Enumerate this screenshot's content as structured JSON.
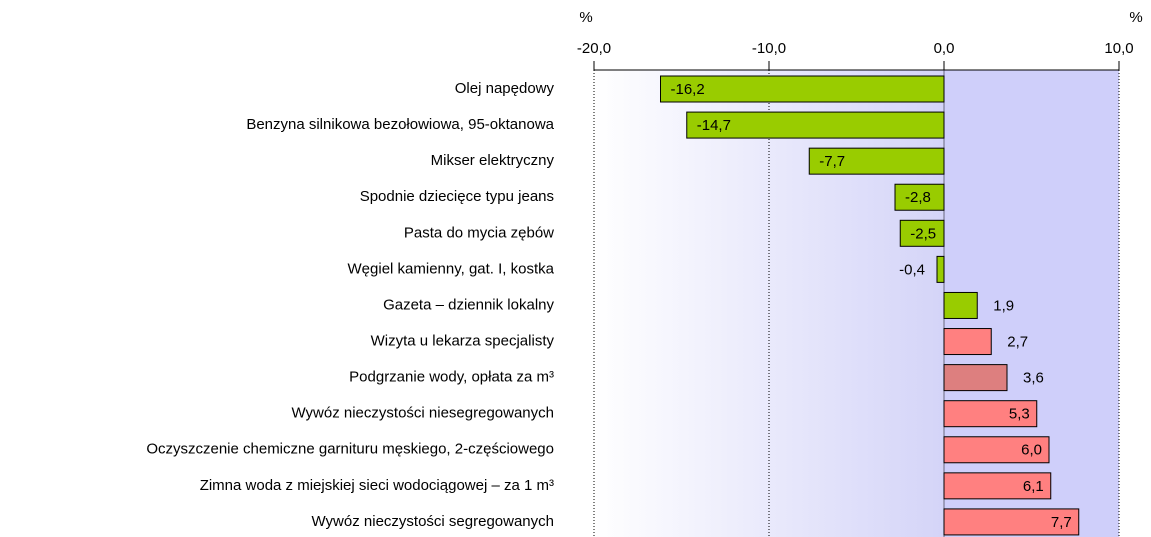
{
  "chart_data": {
    "type": "barh",
    "x_unit_left": "%",
    "x_unit_right": "%",
    "categories": [
      "Olej napędowy",
      "Benzyna silnikowa bezołowiowa, 95-oktanowa",
      "Mikser elektryczny",
      "Spodnie dziecięce typu jeans",
      "Pasta do mycia zębów",
      "Węgiel kamienny, gat. I, kostka",
      "Gazeta – dziennik lokalny",
      "Wizyta u lekarza specjalisty",
      "Podgrzanie wody, opłata za m³",
      "Wywóz nieczystości niesegregowanych",
      "Oczyszczenie chemiczne garnituru męskiego, 2-częściowego",
      "Zimna woda z miejskiej sieci wodociągowej – za 1 m³",
      "Wywóz nieczystości segregowanych"
    ],
    "values": [
      -16.2,
      -14.7,
      -7.7,
      -2.8,
      -2.5,
      -0.4,
      1.9,
      2.7,
      3.6,
      5.3,
      6.0,
      6.1,
      7.7
    ],
    "value_labels": [
      "-16,2",
      "-14,7",
      "-7,7",
      "-2,8",
      "-2,5",
      "-0,4",
      "1,9",
      "2,7",
      "3,6",
      "5,3",
      "6,0",
      "6,1",
      "7,7"
    ],
    "colors": [
      "#99cc00",
      "#99cc00",
      "#99cc00",
      "#99cc00",
      "#99cc00",
      "#99cc00",
      "#99cc00",
      "#ff8080",
      "#dd7f7f",
      "#ff8080",
      "#ff8080",
      "#ff8080",
      "#ff8080"
    ],
    "xlim": [
      -20,
      10
    ],
    "xticks": [
      {
        "value": -20,
        "label": "-20,0"
      },
      {
        "value": -10,
        "label": "-10,0"
      },
      {
        "value": 0,
        "label": "0,0"
      },
      {
        "value": 10,
        "label": "10,0"
      }
    ],
    "grid": true
  }
}
